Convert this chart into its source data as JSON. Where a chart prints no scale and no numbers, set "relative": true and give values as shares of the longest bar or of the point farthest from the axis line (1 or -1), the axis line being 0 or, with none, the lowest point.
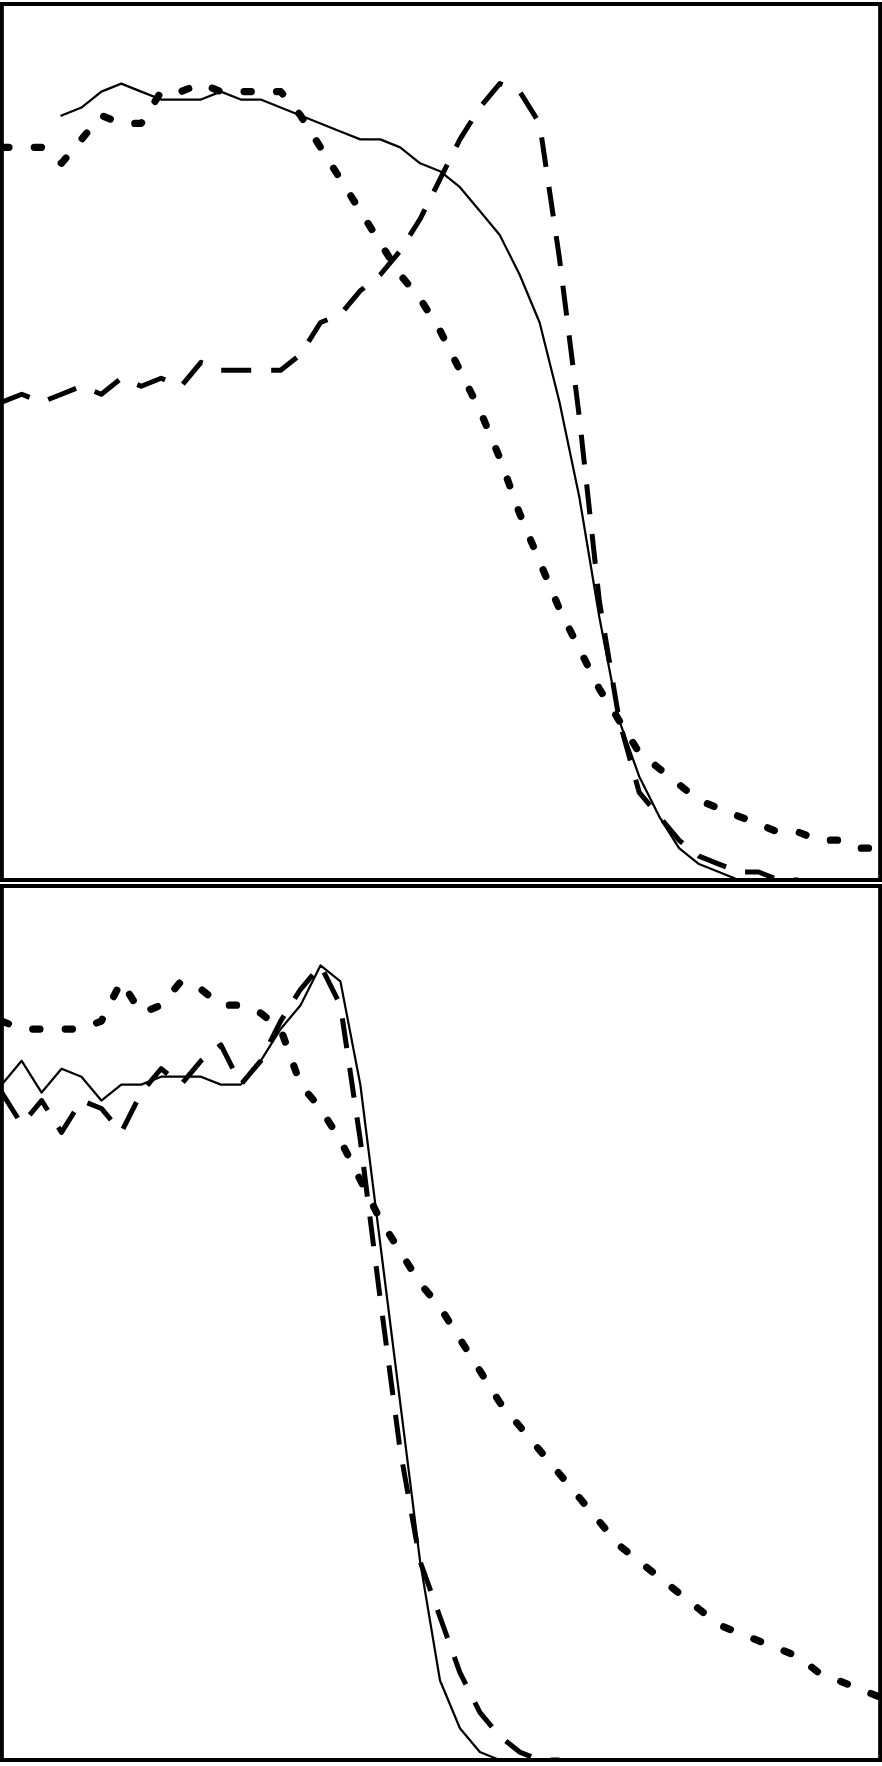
{
  "chart_data": [
    {
      "type": "line",
      "relative": true,
      "legend": false,
      "grid": false,
      "marker": "none",
      "categories": [
        null,
        null,
        null,
        null,
        null,
        null,
        null,
        null,
        null,
        null,
        null,
        null,
        null,
        null,
        null,
        null,
        null,
        null,
        null,
        null,
        null,
        null,
        null,
        null,
        null,
        null,
        null,
        null,
        null,
        null,
        null,
        null,
        null,
        null,
        null,
        null,
        null,
        null,
        null,
        null,
        null,
        null,
        null,
        null,
        null
      ],
      "series": [
        {
          "color": "#000000",
          "line_style": "solid",
          "values": [
            null,
            null,
            null,
            0.96,
            0.97,
            0.99,
            1.0,
            0.99,
            0.98,
            0.98,
            0.98,
            0.99,
            0.98,
            0.98,
            0.97,
            0.96,
            0.95,
            0.94,
            0.93,
            0.93,
            0.92,
            0.9,
            0.89,
            0.87,
            0.84,
            0.81,
            0.76,
            0.7,
            0.6,
            0.48,
            0.33,
            0.2,
            0.13,
            0.08,
            0.04,
            0.02,
            0.01,
            0,
            0,
            0,
            0,
            0,
            0,
            0,
            0
          ]
        },
        {
          "color": "#000000",
          "line_style": "dashed",
          "values": [
            0.6,
            0.61,
            0.6,
            0.61,
            0.62,
            0.61,
            0.63,
            0.62,
            0.63,
            0.62,
            0.65,
            0.64,
            0.64,
            0.64,
            0.64,
            0.66,
            0.7,
            0.71,
            0.74,
            0.76,
            0.79,
            0.83,
            0.88,
            0.93,
            0.97,
            1.0,
            0.99,
            0.95,
            0.78,
            0.58,
            0.35,
            0.2,
            0.11,
            0.08,
            0.05,
            0.03,
            0.02,
            0.01,
            0.01,
            0,
            0,
            null,
            null,
            null,
            null
          ]
        },
        {
          "color": "#000000",
          "line_style": "dotted",
          "values": [
            0.92,
            0.92,
            0.92,
            0.9,
            0.93,
            0.96,
            0.95,
            0.95,
            0.99,
            0.99,
            1.0,
            0.99,
            0.99,
            0.99,
            0.99,
            0.96,
            0.92,
            0.88,
            0.84,
            0.8,
            0.76,
            0.73,
            0.69,
            0.64,
            0.59,
            0.53,
            0.46,
            0.4,
            0.34,
            0.29,
            0.24,
            0.2,
            0.16,
            0.14,
            0.12,
            0.1,
            0.09,
            0.08,
            0.07,
            0.06,
            0.06,
            0.05,
            0.05,
            0.04,
            0.04
          ]
        }
      ]
    },
    {
      "type": "line",
      "relative": true,
      "legend": false,
      "grid": false,
      "marker": "none",
      "categories": [
        null,
        null,
        null,
        null,
        null,
        null,
        null,
        null,
        null,
        null,
        null,
        null,
        null,
        null,
        null,
        null,
        null,
        null,
        null,
        null,
        null,
        null,
        null,
        null,
        null,
        null,
        null,
        null,
        null,
        null,
        null,
        null,
        null,
        null,
        null,
        null,
        null,
        null,
        null,
        null,
        null,
        null,
        null,
        null,
        null
      ],
      "series": [
        {
          "color": "#000000",
          "line_style": "solid",
          "values": [
            0.85,
            0.88,
            0.84,
            0.87,
            0.86,
            0.83,
            0.85,
            0.85,
            0.86,
            0.86,
            0.86,
            0.85,
            0.85,
            0.88,
            0.92,
            0.95,
            1.0,
            0.98,
            0.85,
            0.65,
            0.45,
            0.25,
            0.1,
            0.04,
            0.01,
            0,
            null,
            null,
            null,
            null,
            null,
            null,
            null,
            null,
            null,
            null,
            null,
            null,
            null,
            null,
            null,
            null,
            null,
            null,
            null
          ]
        },
        {
          "color": "#000000",
          "line_style": "dashed",
          "values": [
            0.84,
            0.8,
            0.83,
            0.79,
            0.83,
            0.82,
            0.79,
            0.84,
            0.87,
            0.85,
            0.88,
            0.9,
            0.85,
            0.88,
            0.93,
            0.97,
            1.0,
            0.95,
            0.78,
            0.58,
            0.39,
            0.25,
            0.18,
            0.11,
            0.06,
            0.03,
            0.01,
            0,
            0,
            null,
            null,
            null,
            null,
            null,
            null,
            null,
            null,
            null,
            null,
            null,
            null,
            null,
            null,
            null,
            null
          ]
        },
        {
          "color": "#000000",
          "line_style": "dotted",
          "values": [
            0.93,
            0.92,
            0.92,
            0.92,
            0.92,
            0.93,
            0.98,
            0.94,
            0.95,
            0.98,
            0.97,
            0.95,
            0.95,
            0.94,
            0.92,
            0.85,
            0.82,
            0.78,
            0.73,
            0.68,
            0.64,
            0.6,
            0.57,
            0.53,
            0.49,
            0.45,
            0.42,
            0.39,
            0.36,
            0.33,
            0.3,
            0.27,
            0.25,
            0.23,
            0.21,
            0.19,
            0.17,
            0.16,
            0.15,
            0.14,
            0.13,
            0.11,
            0.1,
            0.09,
            0.08
          ]
        }
      ]
    }
  ]
}
